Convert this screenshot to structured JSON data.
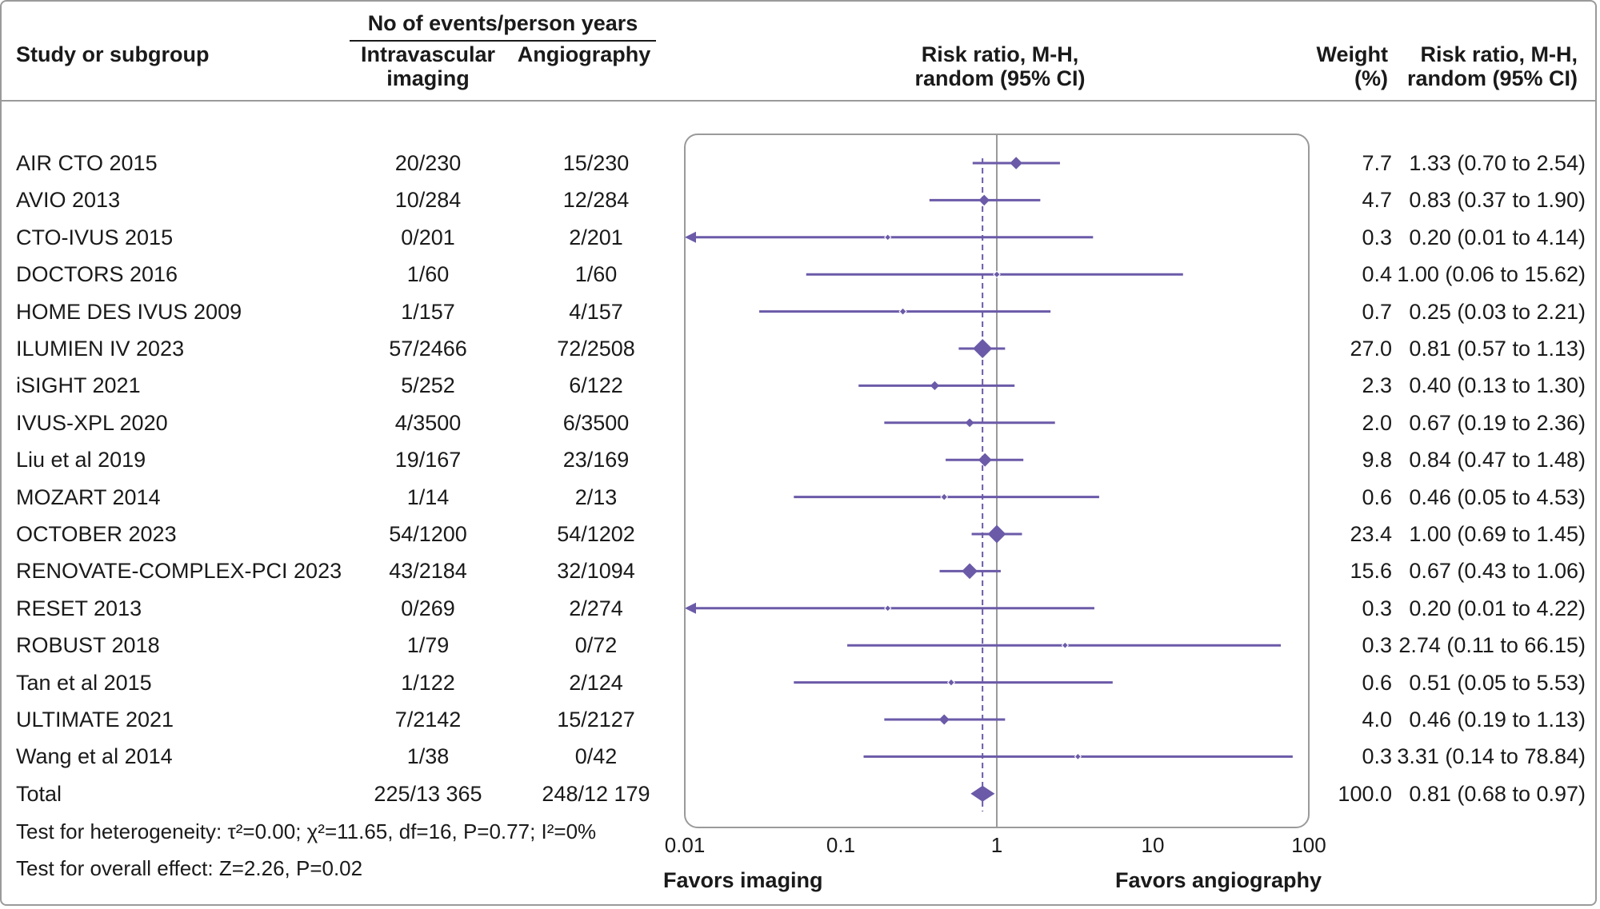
{
  "header": {
    "study": "Study or subgroup",
    "events_group": "No of events/person years",
    "imaging": [
      "Intravascular",
      "imaging"
    ],
    "angiography": "Angiography",
    "rr_plot": [
      "Risk ratio, M-H,",
      "random (95% CI)"
    ],
    "weight": [
      "Weight",
      "(%)"
    ],
    "rr_text": [
      "Risk ratio, M-H,",
      "random (95% CI)"
    ]
  },
  "rows": [
    {
      "study": "AIR CTO 2015",
      "imaging": "20/230",
      "angiography": "15/230",
      "weight": "7.7",
      "rr_text": "1.33 (0.70 to 2.54)"
    },
    {
      "study": "AVIO  2013",
      "imaging": "10/284",
      "angiography": "12/284",
      "weight": "4.7",
      "rr_text": "0.83 (0.37 to 1.90)"
    },
    {
      "study": "CTO-IVUS 2015",
      "imaging": "0/201",
      "angiography": "2/201",
      "weight": "0.3",
      "rr_text": "0.20 (0.01 to 4.14)"
    },
    {
      "study": "DOCTORS 2016",
      "imaging": "1/60",
      "angiography": "1/60",
      "weight": "0.4",
      "rr_text": "1.00 (0.06 to 15.62)"
    },
    {
      "study": "HOME DES IVUS 2009",
      "imaging": "1/157",
      "angiography": "4/157",
      "weight": "0.7",
      "rr_text": "0.25 (0.03 to 2.21)"
    },
    {
      "study": "ILUMIEN IV 2023",
      "imaging": "57/2466",
      "angiography": "72/2508",
      "weight": "27.0",
      "rr_text": "0.81 (0.57 to 1.13)"
    },
    {
      "study": "iSIGHT 2021",
      "imaging": "5/252",
      "angiography": "6/122",
      "weight": "2.3",
      "rr_text": "0.40 (0.13 to 1.30)"
    },
    {
      "study": "IVUS-XPL 2020",
      "imaging": "4/3500",
      "angiography": "6/3500",
      "weight": "2.0",
      "rr_text": "0.67 (0.19 to 2.36)"
    },
    {
      "study": "Liu et al 2019",
      "imaging": "19/167",
      "angiography": "23/169",
      "weight": "9.8",
      "rr_text": "0.84 (0.47 to 1.48)"
    },
    {
      "study": "MOZART 2014",
      "imaging": "1/14",
      "angiography": "2/13",
      "weight": "0.6",
      "rr_text": "0.46 (0.05 to 4.53)"
    },
    {
      "study": "OCTOBER 2023",
      "imaging": "54/1200",
      "angiography": "54/1202",
      "weight": "23.4",
      "rr_text": "1.00 (0.69 to 1.45)"
    },
    {
      "study": "RENOVATE-COMPLEX-PCI 2023",
      "imaging": "43/2184",
      "angiography": "32/1094",
      "weight": "15.6",
      "rr_text": "0.67 (0.43 to 1.06)"
    },
    {
      "study": "RESET 2013",
      "imaging": "0/269",
      "angiography": "2/274",
      "weight": "0.3",
      "rr_text": "0.20 (0.01 to 4.22)"
    },
    {
      "study": "ROBUST 2018",
      "imaging": "1/79",
      "angiography": "0/72",
      "weight": "0.3",
      "rr_text": "2.74 (0.11 to 66.15)"
    },
    {
      "study": "Tan et al 2015",
      "imaging": "1/122",
      "angiography": "2/124",
      "weight": "0.6",
      "rr_text": "0.51 (0.05 to 5.53)"
    },
    {
      "study": "ULTIMATE 2021",
      "imaging": "7/2142",
      "angiography": "15/2127",
      "weight": "4.0",
      "rr_text": "0.46 (0.19 to 1.13)"
    },
    {
      "study": "Wang et al 2014",
      "imaging": "1/38",
      "angiography": "0/42",
      "weight": "0.3",
      "rr_text": "3.31 (0.14 to 78.84)"
    },
    {
      "study": "Total",
      "imaging": "225/13 365",
      "angiography": "248/12 179",
      "weight": "100.0",
      "rr_text": "0.81 (0.68 to 0.97)"
    }
  ],
  "footnotes": {
    "heterogeneity": "Test for heterogeneity: τ²=0.00; χ²=11.65, df=16, P=0.77; I²=0%",
    "overall": "Test for overall effect: Z=2.26, P=0.02"
  },
  "favors": {
    "left": "Favors imaging",
    "right": "Favors angiography"
  },
  "colors": {
    "marker": "#6b5aa8",
    "frame": "#9a9a9a",
    "null_line": "#9a9a9a"
  },
  "chart_data": {
    "type": "forest",
    "xscale": "log",
    "xlim": [
      0.01,
      100
    ],
    "xticks": [
      0.01,
      0.1,
      1,
      10,
      100
    ],
    "xtick_labels": [
      "0.01",
      "0.1",
      "1",
      "10",
      "100"
    ],
    "null_value": 1,
    "pooled_reference": 0.81,
    "studies": [
      {
        "name": "AIR CTO 2015",
        "rr": 1.33,
        "lo": 0.7,
        "hi": 2.54,
        "weight": 7.7
      },
      {
        "name": "AVIO  2013",
        "rr": 0.83,
        "lo": 0.37,
        "hi": 1.9,
        "weight": 4.7
      },
      {
        "name": "CTO-IVUS 2015",
        "rr": 0.2,
        "lo": 0.01,
        "hi": 4.14,
        "weight": 0.3
      },
      {
        "name": "DOCTORS 2016",
        "rr": 1.0,
        "lo": 0.06,
        "hi": 15.62,
        "weight": 0.4
      },
      {
        "name": "HOME DES IVUS 2009",
        "rr": 0.25,
        "lo": 0.03,
        "hi": 2.21,
        "weight": 0.7
      },
      {
        "name": "ILUMIEN IV 2023",
        "rr": 0.81,
        "lo": 0.57,
        "hi": 1.13,
        "weight": 27.0
      },
      {
        "name": "iSIGHT 2021",
        "rr": 0.4,
        "lo": 0.13,
        "hi": 1.3,
        "weight": 2.3
      },
      {
        "name": "IVUS-XPL 2020",
        "rr": 0.67,
        "lo": 0.19,
        "hi": 2.36,
        "weight": 2.0
      },
      {
        "name": "Liu et al 2019",
        "rr": 0.84,
        "lo": 0.47,
        "hi": 1.48,
        "weight": 9.8
      },
      {
        "name": "MOZART 2014",
        "rr": 0.46,
        "lo": 0.05,
        "hi": 4.53,
        "weight": 0.6
      },
      {
        "name": "OCTOBER 2023",
        "rr": 1.0,
        "lo": 0.69,
        "hi": 1.45,
        "weight": 23.4
      },
      {
        "name": "RENOVATE-COMPLEX-PCI 2023",
        "rr": 0.67,
        "lo": 0.43,
        "hi": 1.06,
        "weight": 15.6
      },
      {
        "name": "RESET 2013",
        "rr": 0.2,
        "lo": 0.01,
        "hi": 4.22,
        "weight": 0.3
      },
      {
        "name": "ROBUST 2018",
        "rr": 2.74,
        "lo": 0.11,
        "hi": 66.15,
        "weight": 0.3
      },
      {
        "name": "Tan et al 2015",
        "rr": 0.51,
        "lo": 0.05,
        "hi": 5.53,
        "weight": 0.6
      },
      {
        "name": "ULTIMATE 2021",
        "rr": 0.46,
        "lo": 0.19,
        "hi": 1.13,
        "weight": 4.0
      },
      {
        "name": "Wang et al 2014",
        "rr": 3.31,
        "lo": 0.14,
        "hi": 78.84,
        "weight": 0.3
      }
    ],
    "total": {
      "name": "Total",
      "rr": 0.81,
      "lo": 0.68,
      "hi": 0.97,
      "weight": 100.0
    }
  }
}
